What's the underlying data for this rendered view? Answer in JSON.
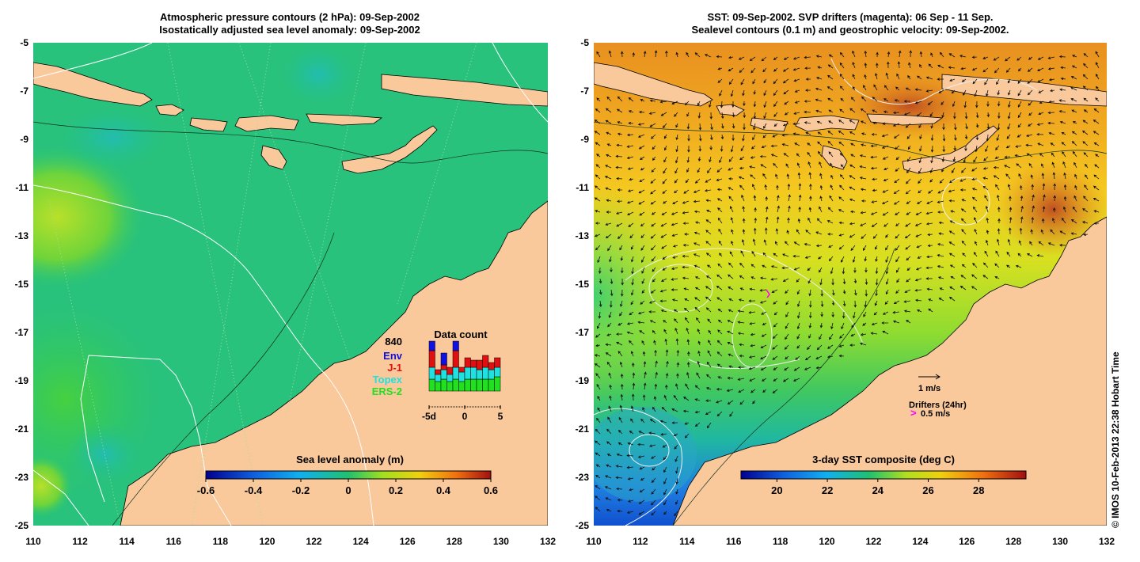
{
  "left_panel": {
    "title_line1": "Atmospheric pressure contours (2 hPa): 09-Sep-2002",
    "title_line2": "Isostatically adjusted sea level anomaly: 09-Sep-2002",
    "colorbar_title": "Sea level anomaly (m)",
    "colorbar_ticks": [
      "-0.6",
      "-0.4",
      "-0.2",
      "0",
      "0.2",
      "0.4",
      "0.6"
    ],
    "data_count": {
      "title": "Data count",
      "total": "840",
      "legend": [
        {
          "label": "Env",
          "color": "#1010e0"
        },
        {
          "label": "J-1",
          "color": "#e01010"
        },
        {
          "label": "Topex",
          "color": "#20e0e0"
        },
        {
          "label": "ERS-2",
          "color": "#20e020"
        }
      ],
      "x_ticks": [
        "-5d",
        "0",
        "5"
      ],
      "bars": [
        {
          "ers2": 0.25,
          "topex": 0.25,
          "j1": 0.35,
          "env": 0.2
        },
        {
          "ers2": 0.2,
          "topex": 0.15,
          "j1": 0.1,
          "env": 0.0
        },
        {
          "ers2": 0.25,
          "topex": 0.2,
          "j1": 0.1,
          "env": 0.25
        },
        {
          "ers2": 0.2,
          "topex": 0.15,
          "j1": 0.15,
          "env": 0.0
        },
        {
          "ers2": 0.25,
          "topex": 0.25,
          "j1": 0.35,
          "env": 0.2
        },
        {
          "ers2": 0.2,
          "topex": 0.2,
          "j1": 0.1,
          "env": 0.0
        },
        {
          "ers2": 0.25,
          "topex": 0.25,
          "j1": 0.2,
          "env": 0.0
        },
        {
          "ers2": 0.25,
          "topex": 0.25,
          "j1": 0.15,
          "env": 0.0
        },
        {
          "ers2": 0.25,
          "topex": 0.2,
          "j1": 0.2,
          "env": 0.0
        },
        {
          "ers2": 0.25,
          "topex": 0.25,
          "j1": 0.25,
          "env": 0.0
        },
        {
          "ers2": 0.25,
          "topex": 0.2,
          "j1": 0.15,
          "env": 0.0
        },
        {
          "ers2": 0.3,
          "topex": 0.2,
          "j1": 0.2,
          "env": 0.0
        }
      ]
    }
  },
  "right_panel": {
    "title_line1": "SST: 09-Sep-2002. SVP drifters (magenta): 06 Sep - 11 Sep.",
    "title_line2": "Sealevel contours (0.1 m) and geostrophic velocity: 09-Sep-2002.",
    "colorbar_title": "3-day SST composite (deg C)",
    "colorbar_ticks": [
      "20",
      "22",
      "24",
      "26",
      "28"
    ],
    "velocity_scale_label": "1 m/s",
    "drifters_label": "Drifters (24hr)",
    "drifter_scale_label": "0.5 m/s",
    "drifter_color": "#ff00ff"
  },
  "axes": {
    "y_ticks": [
      "-5",
      "-7",
      "-9",
      "-11",
      "-13",
      "-15",
      "-17",
      "-19",
      "-21",
      "-23",
      "-25"
    ],
    "x_ticks": [
      "110",
      "112",
      "114",
      "116",
      "118",
      "120",
      "122",
      "124",
      "126",
      "128",
      "130",
      "132"
    ]
  },
  "colors": {
    "land": "#f9c89b",
    "ocean_green": "#22c77a"
  },
  "copyright": "© IMOS 10-Feb-2013 22:38 Hobart Time"
}
